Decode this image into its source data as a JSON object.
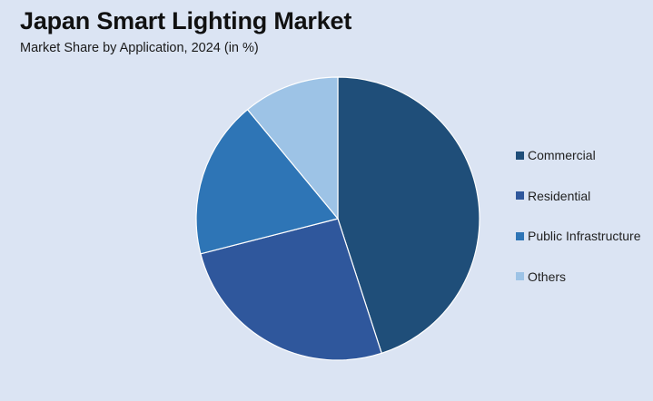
{
  "header": {
    "title": "Japan Smart Lighting Market",
    "subtitle": "Market Share by Application, 2024 (in %)"
  },
  "chart_data": {
    "type": "pie",
    "title": "Japan Smart Lighting Market",
    "subtitle": "Market Share by Application, 2024 (in %)",
    "categories": [
      "Commercial",
      "Residential",
      "Public Infrastructure",
      "Others"
    ],
    "values": [
      45,
      26,
      18,
      11
    ],
    "colors": [
      "#1f4e79",
      "#2f579c",
      "#2e75b6",
      "#9dc3e6"
    ],
    "legend_position": "right"
  }
}
